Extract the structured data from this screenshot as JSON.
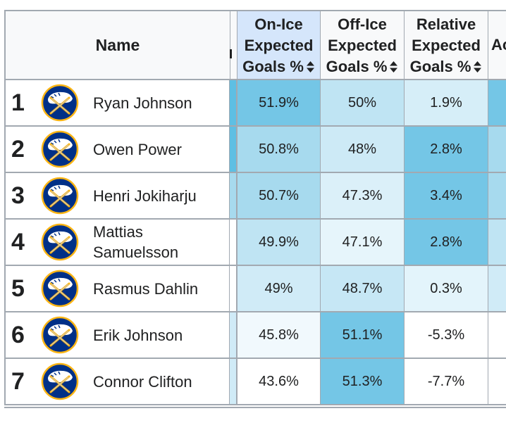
{
  "table": {
    "columns": {
      "name": "Name",
      "on_ice": [
        "On-Ice",
        "Expected",
        "Goals %"
      ],
      "off_ice": [
        "Off-Ice",
        "Expected",
        "Goals %"
      ],
      "relative": [
        "Relative",
        "Expected",
        "Goals %"
      ],
      "next_partial": "Ac"
    },
    "rows": [
      {
        "rank": "1",
        "name": "Ryan Johnson",
        "on_ice": "51.9%",
        "off_ice": "50%",
        "relative": "1.9%",
        "colors": {
          "strip": "#5ebfe3",
          "on": "#74c6e6",
          "off": "#bfe4f3",
          "rel": "#d6eef8",
          "more": "#74c6e6"
        }
      },
      {
        "rank": "2",
        "name": "Owen Power",
        "on_ice": "50.8%",
        "off_ice": "48%",
        "relative": "2.8%",
        "colors": {
          "strip": "#5ebfe3",
          "on": "#a7daee",
          "off": "#cdeaf6",
          "rel": "#74c6e6",
          "more": "#a7daee"
        }
      },
      {
        "rank": "3",
        "name": "Henri Jokiharju",
        "on_ice": "50.7%",
        "off_ice": "47.3%",
        "relative": "3.4%",
        "colors": {
          "strip": "#a7daee",
          "on": "#a7daee",
          "off": "#dbf0f9",
          "rel": "#74c6e6",
          "more": "#a7daee"
        }
      },
      {
        "rank": "4",
        "name": "Mattias Samuelsson",
        "name_lines": [
          "Mattias",
          "Samuelsson"
        ],
        "on_ice": "49.9%",
        "off_ice": "47.1%",
        "relative": "2.8%",
        "colors": {
          "strip": "#ffffff",
          "on": "#bfe4f3",
          "off": "#e6f5fb",
          "rel": "#74c6e6",
          "more": "#bfe4f3"
        }
      },
      {
        "rank": "5",
        "name": "Rasmus Dahlin",
        "on_ice": "49%",
        "off_ice": "48.7%",
        "relative": "0.3%",
        "colors": {
          "strip": "#ffffff",
          "on": "#d0ebf7",
          "off": "#c6e7f5",
          "rel": "#e3f4fb",
          "more": "#d0ebf7"
        }
      },
      {
        "rank": "6",
        "name": "Erik Johnson",
        "on_ice": "45.8%",
        "off_ice": "51.1%",
        "relative": "-5.3%",
        "colors": {
          "strip": "#d0ebf7",
          "on": "#f1f9fd",
          "off": "#74c6e6",
          "rel": "#ffffff",
          "more": "#ffffff"
        }
      },
      {
        "rank": "7",
        "name": "Connor Clifton",
        "on_ice": "43.6%",
        "off_ice": "51.3%",
        "relative": "-7.7%",
        "colors": {
          "strip": "#d0ebf7",
          "on": "#ffffff",
          "off": "#74c6e6",
          "rel": "#ffffff",
          "more": "#ffffff"
        }
      }
    ]
  },
  "logo": {
    "icon": "sabres-logo-icon",
    "colors": {
      "navy": "#003087",
      "gold": "#fcb514",
      "silver": "#c8ccd0"
    }
  },
  "theme": {
    "header_bg": "#f8f9fa",
    "sorted_header_bg": "#d5e6fb",
    "border": "#a2a9b1"
  }
}
